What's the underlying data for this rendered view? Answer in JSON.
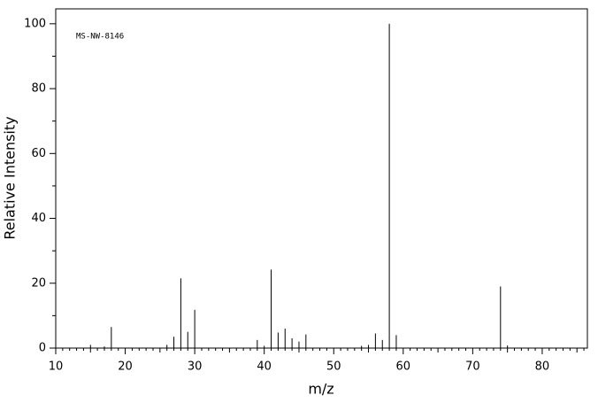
{
  "chart_data": {
    "type": "stick",
    "annotation": "MS-NW-8146",
    "x_label": "m/z",
    "y_label": "Relative Intensity",
    "x": [
      15,
      17,
      18,
      26,
      27,
      28,
      29,
      30,
      39,
      40,
      41,
      42,
      43,
      44,
      45,
      46,
      54,
      55,
      56,
      57,
      58,
      59,
      74,
      75
    ],
    "values": [
      1,
      0.5,
      6.5,
      1,
      3.5,
      21.5,
      5,
      11.8,
      2.5,
      0.7,
      24.2,
      4.8,
      6,
      3,
      2,
      4.2,
      0.7,
      1,
      4.5,
      2.5,
      100,
      4,
      19,
      0.8
    ],
    "color": "#000000",
    "xlim": [
      10,
      86.5
    ],
    "xticks": [
      10,
      20,
      30,
      40,
      50,
      60,
      70,
      80
    ],
    "ylim": [
      0,
      104.6
    ],
    "yticks": [
      0,
      20,
      40,
      60,
      80,
      100
    ]
  }
}
